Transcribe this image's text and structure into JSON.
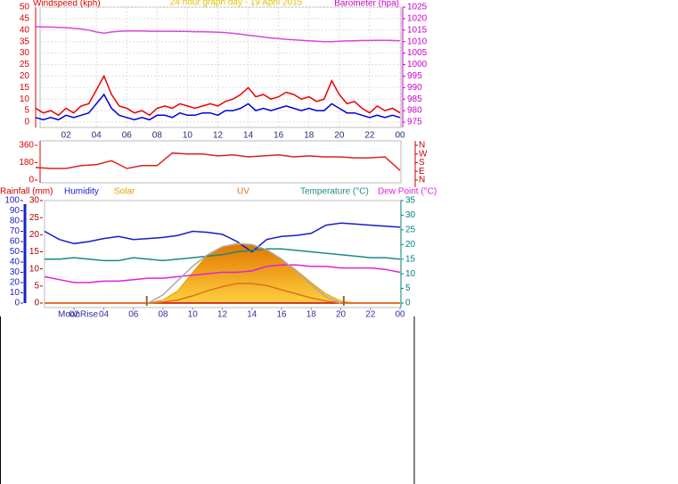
{
  "chart_data": [
    {
      "type": "line",
      "title": "24 hour graph day - 19 April 2015",
      "y_label": "Windspeed (kph)",
      "y2_label": "Barometer (hpa)",
      "title_color": "#e0c000",
      "y_color": "#dd0000",
      "y2_color": "#cc00cc",
      "grid": true,
      "x": [
        0,
        0.5,
        1,
        1.5,
        2,
        2.5,
        3,
        3.5,
        4,
        4.5,
        5,
        5.5,
        6,
        6.5,
        7,
        7.5,
        8,
        8.5,
        9,
        9.5,
        10,
        10.5,
        11,
        11.5,
        12,
        12.5,
        13,
        13.5,
        14,
        14.5,
        15,
        15.5,
        16,
        16.5,
        17,
        17.5,
        18,
        18.5,
        19,
        19.5,
        20,
        20.5,
        21,
        21.5,
        22,
        22.5,
        23,
        23.5,
        24
      ],
      "xlim": [
        0,
        24
      ],
      "xticks": [
        {
          "value": 2,
          "label": "02"
        },
        {
          "value": 4,
          "label": "04"
        },
        {
          "value": 6,
          "label": "06"
        },
        {
          "value": 8,
          "label": "08"
        },
        10,
        12,
        14,
        16,
        18,
        20,
        22,
        {
          "value": 24,
          "label": "00"
        }
      ],
      "ylim": [
        0,
        50
      ],
      "yticks": [
        0,
        5,
        10,
        15,
        20,
        25,
        30,
        35,
        40,
        45,
        50
      ],
      "y2lim": [
        975,
        1025
      ],
      "y2ticks": [
        975,
        980,
        985,
        990,
        995,
        1000,
        1005,
        1010,
        1015,
        1020,
        1025
      ],
      "series": [
        {
          "color": "#ee0000",
          "values": [
            6,
            4,
            5,
            3,
            6,
            4,
            7,
            8,
            14,
            20,
            12,
            7,
            6,
            4,
            5,
            3,
            6,
            7,
            6,
            8,
            7,
            6,
            7,
            8,
            7,
            9,
            10,
            12,
            15,
            11,
            12,
            10,
            11,
            13,
            12,
            10,
            11,
            9,
            10,
            18,
            12,
            8,
            9,
            6,
            4,
            7,
            5,
            6,
            4
          ]
        },
        {
          "color": "#0000dd",
          "values": [
            2,
            1,
            2,
            1,
            3,
            2,
            3,
            4,
            8,
            12,
            6,
            3,
            2,
            1,
            2,
            1,
            3,
            3,
            2,
            4,
            3,
            3,
            4,
            4,
            3,
            5,
            5,
            6,
            8,
            5,
            6,
            5,
            6,
            7,
            6,
            5,
            6,
            5,
            5,
            8,
            6,
            4,
            4,
            3,
            2,
            3,
            2,
            3,
            2
          ]
        },
        {
          "color": "#dd44dd",
          "axis": "y2",
          "values": [
            1016.5,
            1016.4,
            1016.3,
            1016.2,
            1016.1,
            1015.8,
            1015.5,
            1015.0,
            1014.2,
            1013.7,
            1014.2,
            1014.5,
            1014.6,
            1014.6,
            1014.6,
            1014.5,
            1014.5,
            1014.5,
            1014.5,
            1014.4,
            1014.4,
            1014.3,
            1014.3,
            1014.2,
            1014.1,
            1013.9,
            1013.6,
            1013.2,
            1012.8,
            1012.4,
            1012.0,
            1011.6,
            1011.3,
            1011.0,
            1010.8,
            1010.6,
            1010.4,
            1010.2,
            1010.0,
            1010.0,
            1010.2,
            1010.3,
            1010.4,
            1010.5,
            1010.5,
            1010.6,
            1010.6,
            1010.5,
            1010.4
          ]
        }
      ]
    },
    {
      "type": "line",
      "y_color": "#dd0000",
      "y2_color": "#cc0000",
      "x": [
        0,
        1,
        2,
        3,
        4,
        5,
        6,
        7,
        8,
        9,
        10,
        11,
        12,
        13,
        14,
        15,
        16,
        17,
        18,
        19,
        20,
        21,
        22,
        23,
        24
      ],
      "xlim": [
        0,
        24
      ],
      "ylim": [
        0,
        360
      ],
      "yticks": [
        0,
        180,
        360
      ],
      "y2lim": [
        0,
        360
      ],
      "y2ticks": [
        {
          "value": 360,
          "label": "N"
        },
        {
          "value": 270,
          "label": "W"
        },
        {
          "value": 180,
          "label": "S"
        },
        {
          "value": 90,
          "label": "E"
        },
        {
          "value": 0,
          "label": "N"
        }
      ],
      "series": [
        {
          "color": "#dd2222",
          "values": [
            130,
            120,
            120,
            150,
            160,
            200,
            120,
            150,
            150,
            280,
            270,
            270,
            250,
            260,
            240,
            250,
            260,
            240,
            250,
            240,
            240,
            230,
            230,
            240,
            100
          ]
        }
      ]
    },
    {
      "type": "line",
      "x_color": "#3030a0",
      "y_color": "#2020c0",
      "y2_color": "#008080",
      "y3_color": "#aa0000",
      "x": [
        0,
        1,
        2,
        3,
        4,
        5,
        6,
        7,
        8,
        9,
        10,
        11,
        12,
        13,
        14,
        15,
        16,
        17,
        18,
        19,
        20,
        21,
        22,
        23,
        24
      ],
      "xlim": [
        0,
        24
      ],
      "xticks": [
        {
          "value": 2,
          "label": "02"
        },
        {
          "value": 4,
          "label": "04"
        },
        {
          "value": 6,
          "label": "06"
        },
        {
          "value": 8,
          "label": "08"
        },
        10,
        12,
        14,
        16,
        18,
        20,
        22,
        {
          "value": 24,
          "label": "00"
        }
      ],
      "ylim": [
        0,
        100
      ],
      "yticks": [
        0,
        10,
        20,
        30,
        40,
        50,
        60,
        70,
        80,
        90,
        100
      ],
      "y2lim": [
        0,
        35
      ],
      "y2ticks": [
        0,
        5,
        10,
        15,
        20,
        25,
        30,
        35
      ],
      "y3lim": [
        0,
        30
      ],
      "y3ticks": [
        0,
        5,
        10,
        15,
        20,
        25,
        30
      ],
      "annotation": "MoonRise",
      "markers": [
        6.9,
        20.2
      ],
      "marker_color": "#a06030",
      "series": [
        {
          "name": "Rainfall (mm)",
          "color": "#cc0000",
          "axis": "y3",
          "values": [
            0,
            0,
            0,
            0,
            0,
            0,
            0,
            0,
            0,
            0,
            0,
            0,
            0,
            0,
            0,
            0,
            0,
            0,
            0,
            0,
            0,
            0,
            0,
            0,
            0
          ]
        },
        {
          "name": "Humidity",
          "color": "#1a1acc",
          "values": [
            70,
            62,
            58,
            60,
            63,
            65,
            62,
            63,
            64,
            66,
            70,
            69,
            67,
            60,
            50,
            62,
            65,
            66,
            68,
            76,
            78,
            77,
            76,
            75,
            74
          ]
        },
        {
          "name": "Solar",
          "color": "#e8a000",
          "area": true,
          "values": [
            0,
            0,
            0,
            0,
            0,
            0,
            0,
            0,
            3,
            12,
            30,
            47,
            55,
            57,
            57,
            52,
            43,
            32,
            20,
            9,
            2,
            0,
            0,
            0,
            0
          ]
        },
        {
          "name": "UV",
          "color": "#e07020",
          "values": [
            0,
            0,
            0,
            0,
            0,
            0,
            0,
            0,
            1,
            3,
            7,
            12,
            16,
            19,
            19,
            17,
            13,
            9,
            5,
            2,
            0,
            0,
            0,
            0,
            0
          ]
        },
        {
          "name": "Temperature (°C)",
          "color": "#1a8a80",
          "axis": "y2",
          "values": [
            15,
            15,
            15.5,
            15,
            14.5,
            14.5,
            15.5,
            15,
            14.5,
            15,
            15.5,
            16,
            16.5,
            17.5,
            18,
            18.5,
            18.5,
            18,
            17.5,
            17,
            16.5,
            16,
            15.5,
            15.5,
            15
          ]
        },
        {
          "name": "Dew Point (°C)",
          "color": "#dd22dd",
          "axis": "y2",
          "values": [
            9,
            8,
            7,
            7,
            7.5,
            7.5,
            8,
            8.5,
            8.5,
            9,
            9.5,
            10,
            10.5,
            10.5,
            11,
            12.5,
            13,
            13,
            12.5,
            12.5,
            12,
            12,
            12,
            11.5,
            10.5
          ]
        },
        {
          "color": "#aaaaaa",
          "values": [
            null,
            null,
            null,
            null,
            null,
            null,
            null,
            0,
            8,
            22,
            36,
            47,
            55,
            58,
            57,
            52,
            43,
            31,
            18,
            6,
            0,
            null,
            null,
            null,
            null
          ]
        }
      ]
    }
  ]
}
